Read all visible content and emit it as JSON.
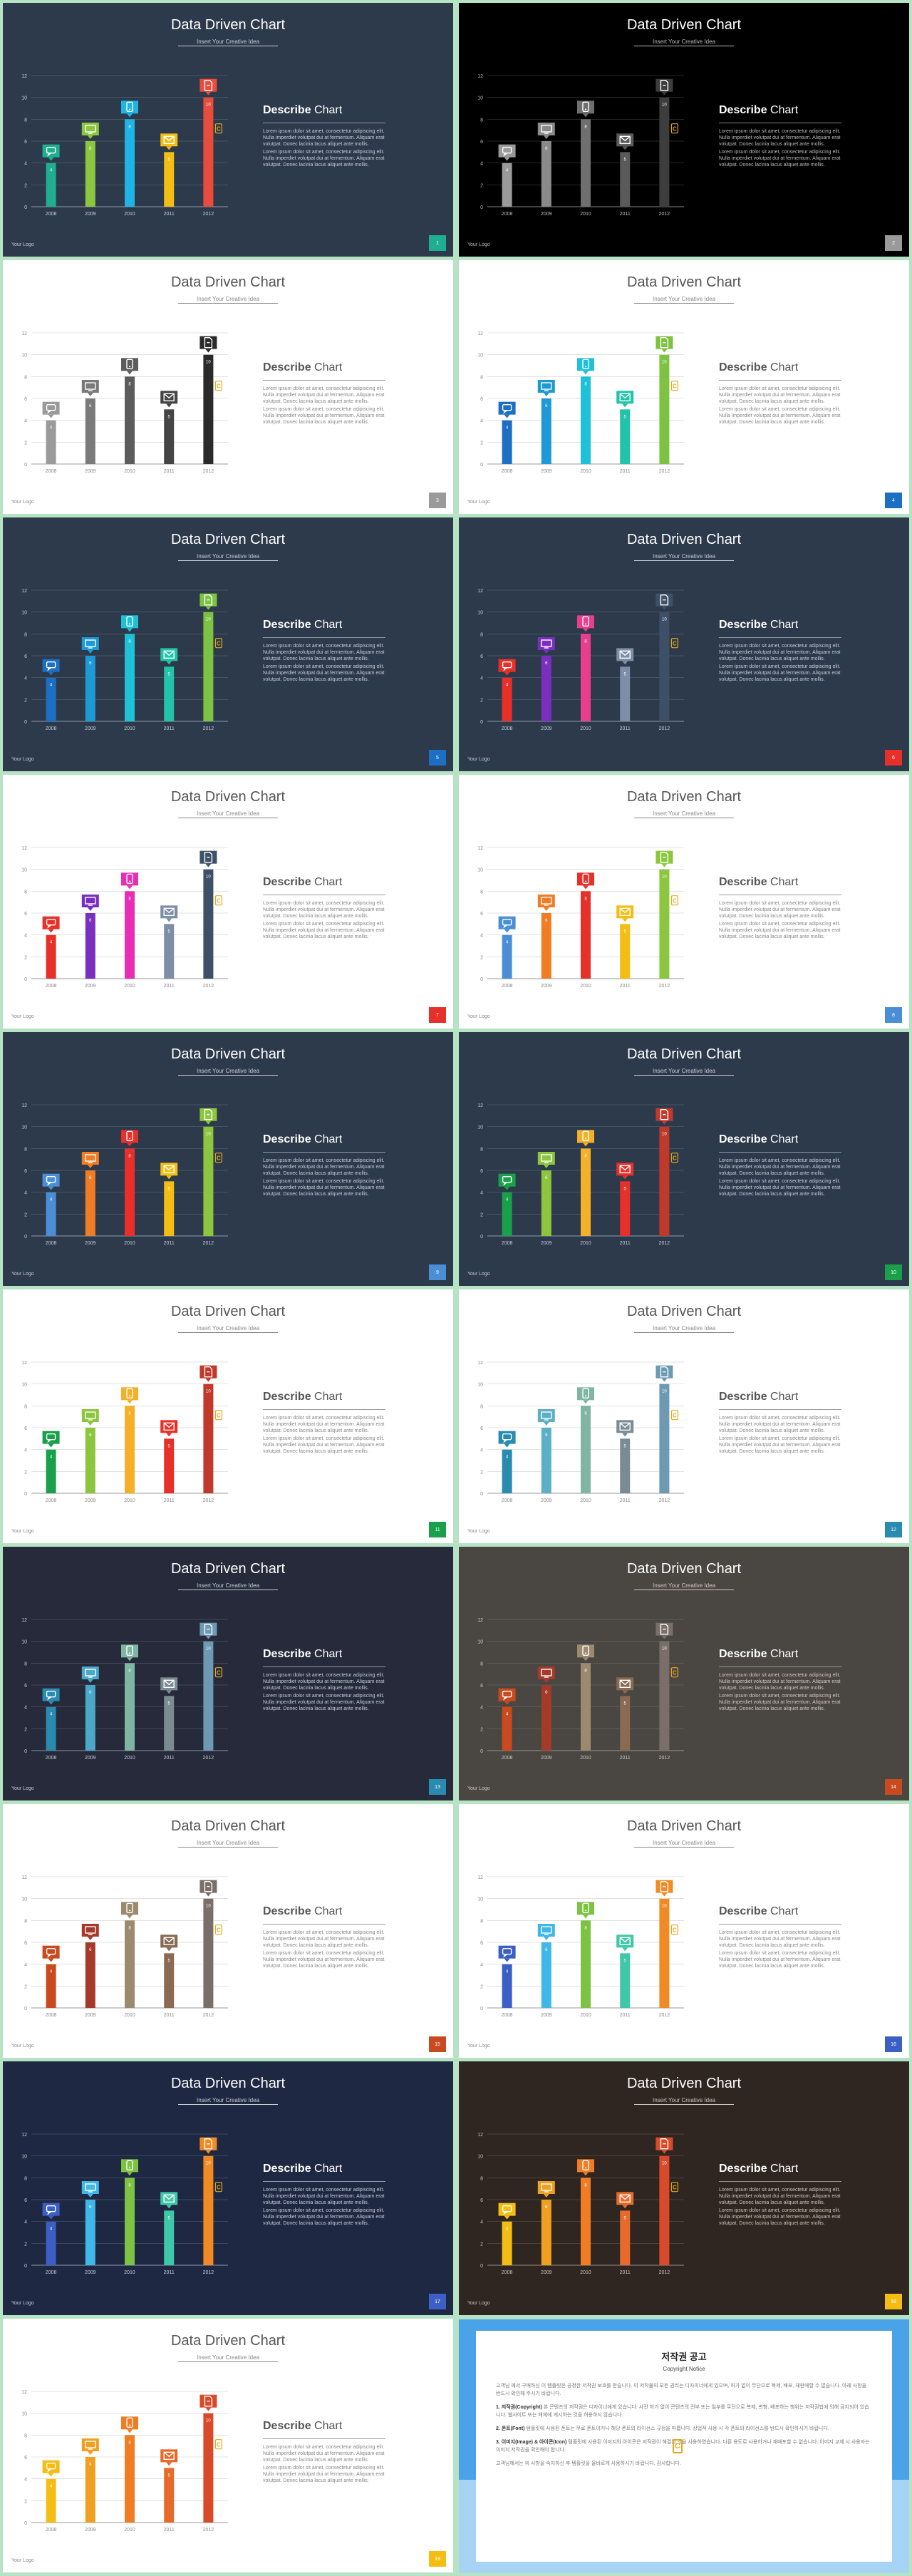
{
  "deck": {
    "title": "Data Driven Chart",
    "subtitle": "Insert Your Creative Idea",
    "describe_bold": "Describe",
    "describe_rest": " Chart",
    "para1": "Lorem ipsum dolor sit amet, consectetur adipiscing elit. Nulla imperdiet volutpat dui at fermentum. Aliquam erat volutpat. Donec lacinia lacus aliquet ante mollis.",
    "para2": "Lorem ipsum dolor sit amet, consectetur adipiscing elit. Nulla imperdiet volutpat dui at fermentum. Aliquam erat volutpat. Donec lacinia lacus aliquet ante mollis.",
    "logo": "Your Logo"
  },
  "chart_data": {
    "type": "bar",
    "categories": [
      "2008",
      "2009",
      "2010",
      "2011",
      "2012"
    ],
    "values": [
      4,
      6,
      8,
      5,
      10
    ],
    "ylim": [
      0,
      12
    ],
    "yticks": [
      0,
      2,
      4,
      6,
      8,
      10,
      12
    ],
    "marker_icons": [
      "chat-icon",
      "monitor-icon",
      "phone-icon",
      "mail-icon",
      "document-icon"
    ],
    "grid": true
  },
  "slides": [
    {
      "bg": "#2d3a4b",
      "text": "#ffffff",
      "sub": "#c5cdd8",
      "axis": "#8d99a8",
      "colors": [
        "#1fae8f",
        "#8cc63f",
        "#1fb3e6",
        "#f4bd14",
        "#e84c3d"
      ],
      "tab": "#1fae8f"
    },
    {
      "bg": "#000000",
      "text": "#ffffff",
      "sub": "#bbbbbb",
      "axis": "#888888",
      "colors": [
        "#9a9a9a",
        "#8a8a8a",
        "#6f6f6f",
        "#5a5a5a",
        "#3d3d3d"
      ],
      "tab": "#9a9a9a"
    },
    {
      "bg": "#ffffff",
      "text": "#555555",
      "sub": "#888888",
      "axis": "#999999",
      "colors": [
        "#9a9a9a",
        "#7a7a7a",
        "#5c5c5c",
        "#454545",
        "#2a2a2a"
      ],
      "tab": "#9a9a9a"
    },
    {
      "bg": "#ffffff",
      "text": "#555555",
      "sub": "#888888",
      "axis": "#999999",
      "colors": [
        "#1d6fc4",
        "#1d9ad6",
        "#1fc1d9",
        "#22c3a8",
        "#7dc242"
      ],
      "tab": "#1d6fc4"
    },
    {
      "bg": "#2d3a4b",
      "text": "#ffffff",
      "sub": "#c5cdd8",
      "axis": "#8d99a8",
      "colors": [
        "#1d6fc4",
        "#1d9ad6",
        "#1fc1d9",
        "#22c3a8",
        "#7dc242"
      ],
      "tab": "#1d6fc4"
    },
    {
      "bg": "#2d3a4b",
      "text": "#ffffff",
      "sub": "#c5cdd8",
      "axis": "#8d99a8",
      "colors": [
        "#e8302a",
        "#7b2fbe",
        "#e83e8c",
        "#7d8ea6",
        "#3d5068"
      ],
      "tab": "#e8302a"
    },
    {
      "bg": "#ffffff",
      "text": "#555555",
      "sub": "#888888",
      "axis": "#999999",
      "colors": [
        "#e8302a",
        "#7b2fbe",
        "#e82eb4",
        "#7d8ea6",
        "#3d5068"
      ],
      "tab": "#e8302a"
    },
    {
      "bg": "#ffffff",
      "text": "#555555",
      "sub": "#888888",
      "axis": "#999999",
      "colors": [
        "#4a8fd6",
        "#f07d24",
        "#e8302a",
        "#f4bd14",
        "#8cc63f"
      ],
      "tab": "#4a8fd6"
    },
    {
      "bg": "#2d3a4b",
      "text": "#ffffff",
      "sub": "#c5cdd8",
      "axis": "#8d99a8",
      "colors": [
        "#4a8fd6",
        "#f07d24",
        "#e8302a",
        "#f4bd14",
        "#8cc63f"
      ],
      "tab": "#4a8fd6"
    },
    {
      "bg": "#2d3a4b",
      "text": "#ffffff",
      "sub": "#c5cdd8",
      "axis": "#8d99a8",
      "colors": [
        "#1aa04a",
        "#8cc63f",
        "#f4b028",
        "#e8302a",
        "#c0392b"
      ],
      "tab": "#1aa04a"
    },
    {
      "bg": "#ffffff",
      "text": "#555555",
      "sub": "#888888",
      "axis": "#999999",
      "colors": [
        "#1aa04a",
        "#8cc63f",
        "#f4b028",
        "#e8302a",
        "#c0392b"
      ],
      "tab": "#1aa04a"
    },
    {
      "bg": "#ffffff",
      "text": "#555555",
      "sub": "#888888",
      "axis": "#999999",
      "colors": [
        "#2a8bb0",
        "#5bb0c6",
        "#7fb5a2",
        "#7a8c92",
        "#6d9ab2"
      ],
      "tab": "#2a8bb0"
    },
    {
      "bg": "#262a3a",
      "text": "#ffffff",
      "sub": "#c5cdd8",
      "axis": "#8d99a8",
      "colors": [
        "#2a8bb0",
        "#4aa8c8",
        "#7fb5a2",
        "#7a8c92",
        "#6d9ab2"
      ],
      "tab": "#2a8bb0"
    },
    {
      "bg": "#4a4642",
      "text": "#ffffff",
      "sub": "#cfc9c2",
      "axis": "#9a948d",
      "colors": [
        "#c94a1f",
        "#a63a2a",
        "#9c8a6e",
        "#8a6a52",
        "#7a6e6a"
      ],
      "tab": "#c94a1f"
    },
    {
      "bg": "#ffffff",
      "text": "#555555",
      "sub": "#888888",
      "axis": "#999999",
      "colors": [
        "#c94a1f",
        "#a63a2a",
        "#9c8a6e",
        "#8a6a52",
        "#7a6e6a"
      ],
      "tab": "#c94a1f"
    },
    {
      "bg": "#ffffff",
      "text": "#555555",
      "sub": "#888888",
      "axis": "#999999",
      "colors": [
        "#3b5fc4",
        "#3fb7e8",
        "#7dc242",
        "#3fc8a8",
        "#f08a24"
      ],
      "tab": "#3b5fc4"
    },
    {
      "bg": "#1f2842",
      "text": "#ffffff",
      "sub": "#c5cdd8",
      "axis": "#8d99a8",
      "colors": [
        "#3b5fc4",
        "#3fb7e8",
        "#7dc242",
        "#3fc8a8",
        "#f08a24"
      ],
      "tab": "#3b5fc4"
    },
    {
      "bg": "#2f2621",
      "text": "#ffffff",
      "sub": "#cfc4b9",
      "axis": "#9a8d80",
      "colors": [
        "#f4bd14",
        "#f0a020",
        "#f07d24",
        "#e86a2a",
        "#d94a2a"
      ],
      "tab": "#f4bd14"
    },
    {
      "bg": "#ffffff",
      "text": "#555555",
      "sub": "#888888",
      "axis": "#999999",
      "colors": [
        "#f4bd14",
        "#f0a020",
        "#f07d24",
        "#e86a2a",
        "#d94a2a"
      ],
      "tab": "#f4bd14"
    }
  ],
  "notice": {
    "title": "저작권 공고",
    "subtitle": "Copyright Notice",
    "p1": "고객님 께서 구매하신 이 템플릿은 공정한 저작권 보호를 받습니다. 이 저작물의 모든 권리는 디자이너에게 있으며, 허가 없이 무단으로 복제, 배포, 재판매할 수 없습니다. 아래 사항을 반드시 확인해 주시기 바랍니다.",
    "p2_bold": "1. 저작권(Copyright)",
    "p2": " 본 콘텐츠의 저작권은 디자이너에게 있습니다. 사전 허가 없이 콘텐츠의 전부 또는 일부를 무단으로 복제, 변형, 배포하는 행위는 저작권법에 의해 금지되어 있습니다. 웹사이트 또는 매체에 게시하는 것을 허용하지 않습니다.",
    "p3_bold": "2. 폰트(Font)",
    "p3": " 템플릿에 사용된 폰트는 무료 폰트이거나 해당 폰트의 라이선스 규정을 따릅니다. 상업적 사용 시 각 폰트의 라이선스를 반드시 확인하시기 바랍니다.",
    "p4_bold": "3. 이미지(Image) & 아이콘(Icon)",
    "p4": " 템플릿에 사용된 이미지와 아이콘은 저작권이 해결된 것을 사용하였습니다. 다른 용도로 사용하거나 재배포할 수 없습니다. 이미지 교체 시 사용자는 이미지 저작권을 확인해야 합니다.",
    "p5": "고객님께서는 위 사항을 숙지하신 후 템플릿을 올바르게 사용하시기 바랍니다. 감사합니다."
  }
}
